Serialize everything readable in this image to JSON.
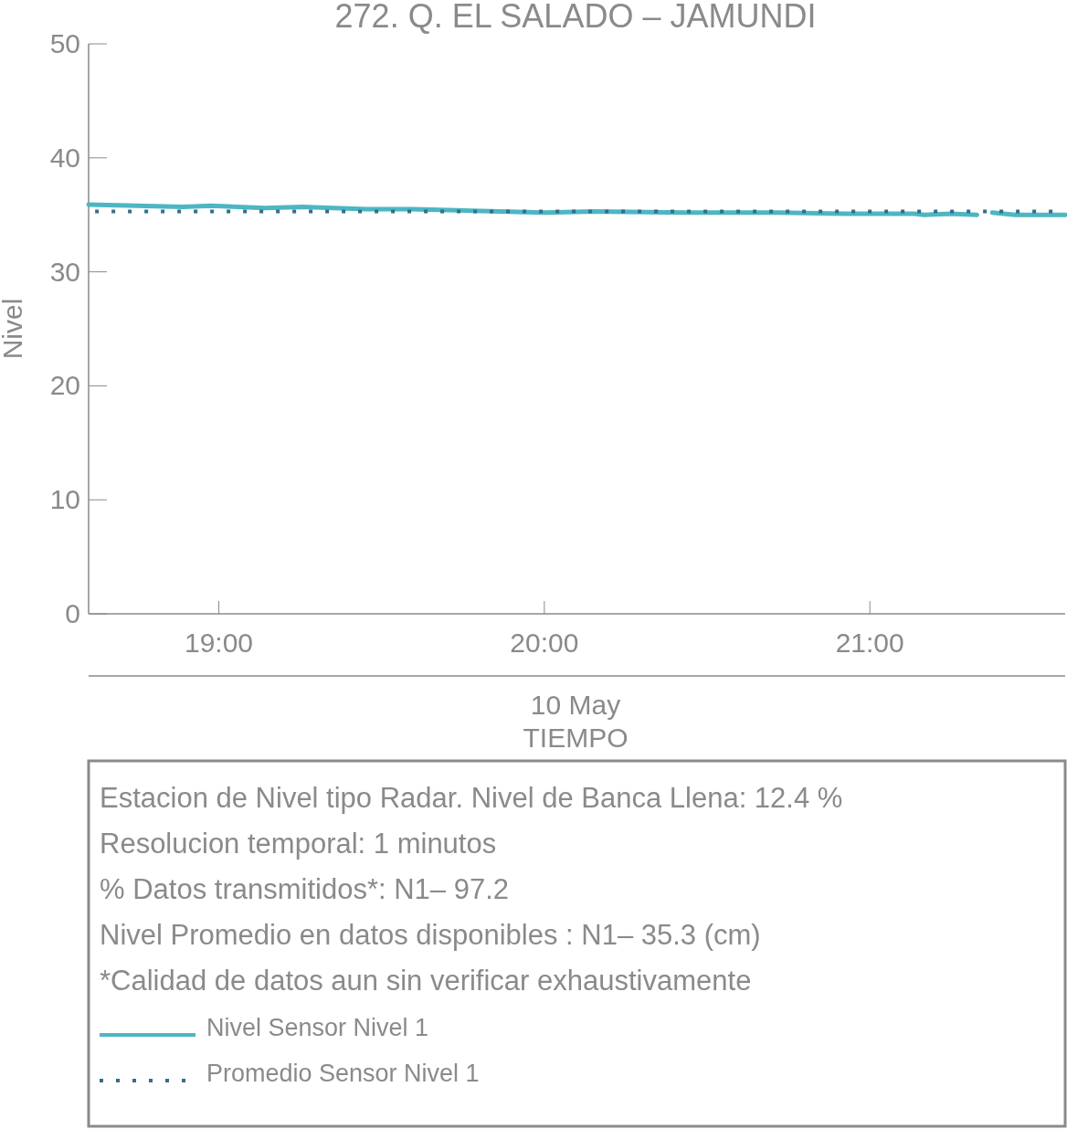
{
  "chart_data": {
    "type": "line",
    "title": "272. Q. EL SALADO – JAMUNDI",
    "xlabel": "TIEMPO",
    "ylabel": "Nivel",
    "annotations": [
      "10 May",
      "Estacion de Nivel tipo Radar. Nivel de Banca Llena: 12.4 %",
      "Resolucion temporal: 1 minutos",
      "% Datos transmitidos*: N1– 97.2",
      "Nivel Promedio en datos disponibles : N1– 35.3 (cm)",
      "*Calidad de datos aun sin verificar exhaustivamente"
    ],
    "xlim": [
      18.6,
      21.6
    ],
    "xticks": [
      {
        "value": 19,
        "label": "19:00"
      },
      {
        "value": 20,
        "label": "20:00"
      },
      {
        "value": 21,
        "label": "21:00"
      }
    ],
    "ylim": [
      0,
      50
    ],
    "yticks": [
      0,
      10,
      20,
      30,
      40,
      50
    ],
    "grid": false,
    "legend": "bottom",
    "series": [
      {
        "name": "Nivel Sensor Nivel 1",
        "color": "#4db6c3",
        "line_style": "solid",
        "x": [
          18.6,
          18.75,
          18.89,
          18.975,
          19.143,
          19.256,
          19.452,
          19.593,
          19.733,
          20.0,
          20.154,
          20.435,
          20.716,
          20.927,
          21.138,
          21.166,
          21.25,
          21.329
        ],
        "values": [
          35.9,
          35.8,
          35.7,
          35.8,
          35.6,
          35.7,
          35.5,
          35.5,
          35.4,
          35.2,
          35.3,
          35.2,
          35.2,
          35.1,
          35.1,
          35.0,
          35.1,
          35.0
        ]
      },
      {
        "color": "#4db6c3",
        "line_style": "solid",
        "x": [
          21.376,
          21.447,
          21.6
        ],
        "values": [
          35.2,
          35.0,
          35.0
        ]
      },
      {
        "name": "Promedio Sensor Nivel 1",
        "color": "#2f6f8c",
        "line_style": "dotted",
        "x": [
          18.62,
          21.6
        ],
        "values": [
          35.3,
          35.3
        ]
      }
    ]
  }
}
